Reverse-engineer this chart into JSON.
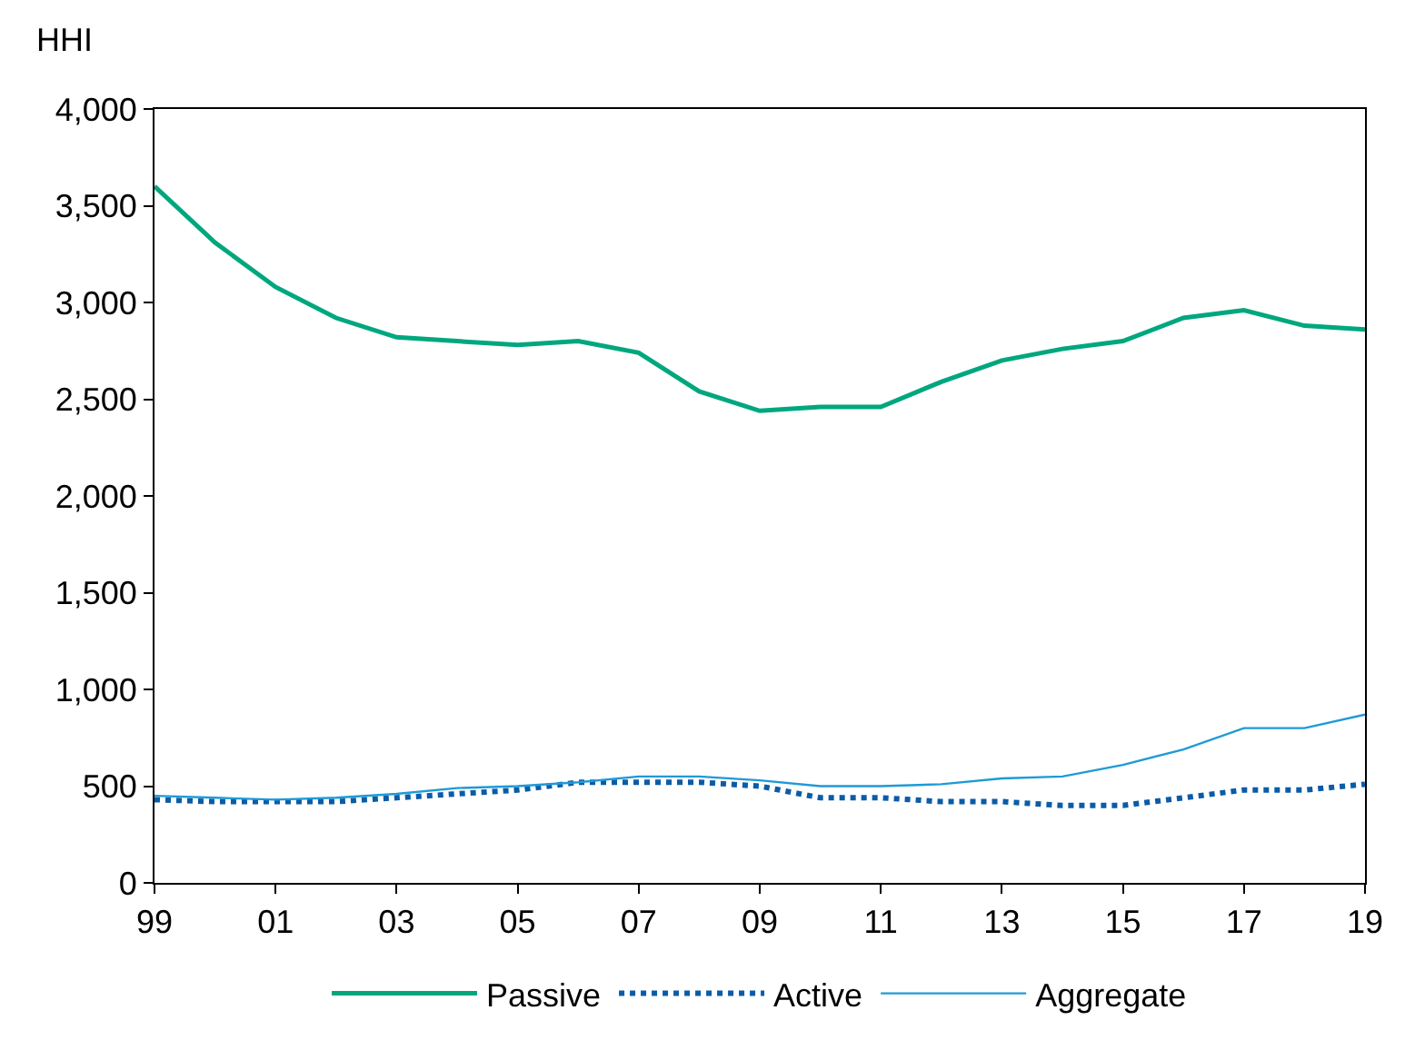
{
  "chart_data": {
    "type": "line",
    "ylabel": "HHI",
    "x": [
      1999,
      2000,
      2001,
      2002,
      2003,
      2004,
      2005,
      2006,
      2007,
      2008,
      2009,
      2010,
      2011,
      2012,
      2013,
      2014,
      2015,
      2016,
      2017,
      2018,
      2019
    ],
    "series": [
      {
        "name": "Passive",
        "color": "#00a77e",
        "line_style": "solid",
        "values": [
          3600,
          3310,
          3080,
          2920,
          2820,
          2800,
          2780,
          2800,
          2740,
          2540,
          2440,
          2460,
          2460,
          2590,
          2700,
          2760,
          2800,
          2920,
          2960,
          2880,
          2860
        ]
      },
      {
        "name": "Active",
        "color": "#0a5ca8",
        "line_style": "dotted",
        "values": [
          430,
          420,
          420,
          420,
          440,
          460,
          480,
          520,
          520,
          520,
          500,
          440,
          440,
          420,
          420,
          400,
          400,
          440,
          480,
          480,
          510
        ]
      },
      {
        "name": "Aggregate",
        "color": "#1f9ad6",
        "line_style": "solid",
        "values": [
          450,
          440,
          430,
          440,
          460,
          490,
          500,
          520,
          550,
          550,
          530,
          500,
          500,
          510,
          540,
          550,
          610,
          690,
          800,
          800,
          870
        ]
      }
    ],
    "xlim": [
      1999,
      2019
    ],
    "xticks": [
      {
        "value": 1999,
        "label": "99"
      },
      {
        "value": 2001,
        "label": "01"
      },
      {
        "value": 2003,
        "label": "03"
      },
      {
        "value": 2005,
        "label": "05"
      },
      {
        "value": 2007,
        "label": "07"
      },
      {
        "value": 2009,
        "label": "09"
      },
      {
        "value": 2011,
        "label": "11"
      },
      {
        "value": 2013,
        "label": "13"
      },
      {
        "value": 2015,
        "label": "15"
      },
      {
        "value": 2017,
        "label": "17"
      },
      {
        "value": 2019,
        "label": "19"
      }
    ],
    "ylim": [
      0,
      4000
    ],
    "yticks": [
      {
        "value": 0,
        "label": "0"
      },
      {
        "value": 500,
        "label": "500"
      },
      {
        "value": 1000,
        "label": "1,000"
      },
      {
        "value": 1500,
        "label": "1,500"
      },
      {
        "value": 2000,
        "label": "2,000"
      },
      {
        "value": 2500,
        "label": "2,500"
      },
      {
        "value": 3000,
        "label": "3,000"
      },
      {
        "value": 3500,
        "label": "3,500"
      },
      {
        "value": 4000,
        "label": "4,000"
      }
    ],
    "legend": "bottom"
  }
}
